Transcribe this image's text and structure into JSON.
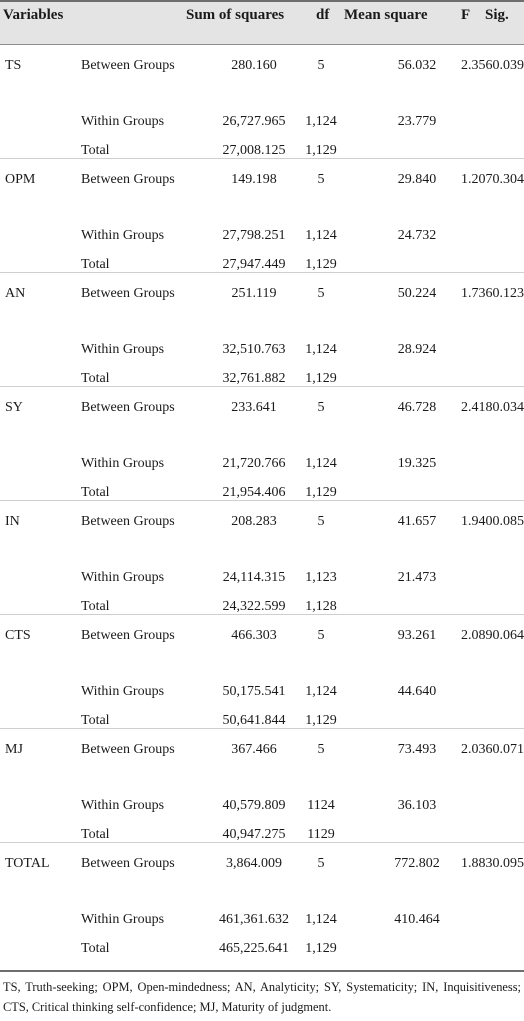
{
  "table": {
    "headers": {
      "variables": "Variables",
      "sum_of_squares": "Sum of squares",
      "df": "df",
      "mean_square": "Mean square",
      "f": "F",
      "sig": "Sig."
    },
    "groups": [
      {
        "variable": "TS",
        "rows": [
          {
            "source": "Between Groups",
            "ss": "280.160",
            "df": "5",
            "ms": "56.032",
            "f_sig": "2.3560.039"
          },
          {
            "source": "Within Groups",
            "ss": "26,727.965",
            "df": "1,124",
            "ms": "23.779",
            "f_sig": ""
          },
          {
            "source": "Total",
            "ss": "27,008.125",
            "df": "1,129",
            "ms": "",
            "f_sig": ""
          }
        ]
      },
      {
        "variable": "OPM",
        "rows": [
          {
            "source": "Between Groups",
            "ss": "149.198",
            "df": "5",
            "ms": "29.840",
            "f_sig": "1.2070.304"
          },
          {
            "source": "Within Groups",
            "ss": "27,798.251",
            "df": "1,124",
            "ms": "24.732",
            "f_sig": ""
          },
          {
            "source": "Total",
            "ss": "27,947.449",
            "df": "1,129",
            "ms": "",
            "f_sig": ""
          }
        ]
      },
      {
        "variable": "AN",
        "rows": [
          {
            "source": "Between Groups",
            "ss": "251.119",
            "df": "5",
            "ms": "50.224",
            "f_sig": "1.7360.123"
          },
          {
            "source": "Within Groups",
            "ss": "32,510.763",
            "df": "1,124",
            "ms": "28.924",
            "f_sig": ""
          },
          {
            "source": "Total",
            "ss": "32,761.882",
            "df": "1,129",
            "ms": "",
            "f_sig": ""
          }
        ]
      },
      {
        "variable": "SY",
        "rows": [
          {
            "source": "Between Groups",
            "ss": "233.641",
            "df": "5",
            "ms": "46.728",
            "f_sig": "2.4180.034"
          },
          {
            "source": "Within Groups",
            "ss": "21,720.766",
            "df": "1,124",
            "ms": "19.325",
            "f_sig": ""
          },
          {
            "source": "Total",
            "ss": "21,954.406",
            "df": "1,129",
            "ms": "",
            "f_sig": ""
          }
        ]
      },
      {
        "variable": "IN",
        "rows": [
          {
            "source": "Between Groups",
            "ss": "208.283",
            "df": "5",
            "ms": "41.657",
            "f_sig": "1.9400.085"
          },
          {
            "source": "Within Groups",
            "ss": "24,114.315",
            "df": "1,123",
            "ms": "21.473",
            "f_sig": ""
          },
          {
            "source": "Total",
            "ss": "24,322.599",
            "df": "1,128",
            "ms": "",
            "f_sig": ""
          }
        ]
      },
      {
        "variable": "CTS",
        "rows": [
          {
            "source": "Between Groups",
            "ss": "466.303",
            "df": "5",
            "ms": "93.261",
            "f_sig": "2.0890.064"
          },
          {
            "source": "Within Groups",
            "ss": "50,175.541",
            "df": "1,124",
            "ms": "44.640",
            "f_sig": ""
          },
          {
            "source": "Total",
            "ss": "50,641.844",
            "df": "1,129",
            "ms": "",
            "f_sig": ""
          }
        ]
      },
      {
        "variable": "MJ",
        "rows": [
          {
            "source": "Between Groups",
            "ss": "367.466",
            "df": "5",
            "ms": "73.493",
            "f_sig": "2.0360.071"
          },
          {
            "source": "Within Groups",
            "ss": "40,579.809",
            "df": "1124",
            "ms": "36.103",
            "f_sig": ""
          },
          {
            "source": "Total",
            "ss": "40,947.275",
            "df": "1129",
            "ms": "",
            "f_sig": ""
          }
        ]
      },
      {
        "variable": "TOTAL",
        "rows": [
          {
            "source": "Between Groups",
            "ss": "3,864.009",
            "df": "5",
            "ms": "772.802",
            "f_sig": "1.8830.095"
          },
          {
            "source": "Within Groups",
            "ss": "461,361.632",
            "df": "1,124",
            "ms": "410.464",
            "f_sig": ""
          },
          {
            "source": "Total",
            "ss": "465,225.641",
            "df": "1,129",
            "ms": "",
            "f_sig": ""
          }
        ]
      }
    ]
  },
  "footnote": "TS, Truth-seeking; OPM, Open-mindedness; AN, Analyticity; SY, Systematicity; IN, Inquisitiveness; CTS, Critical thinking self-confidence; MJ, Maturity of judgment."
}
